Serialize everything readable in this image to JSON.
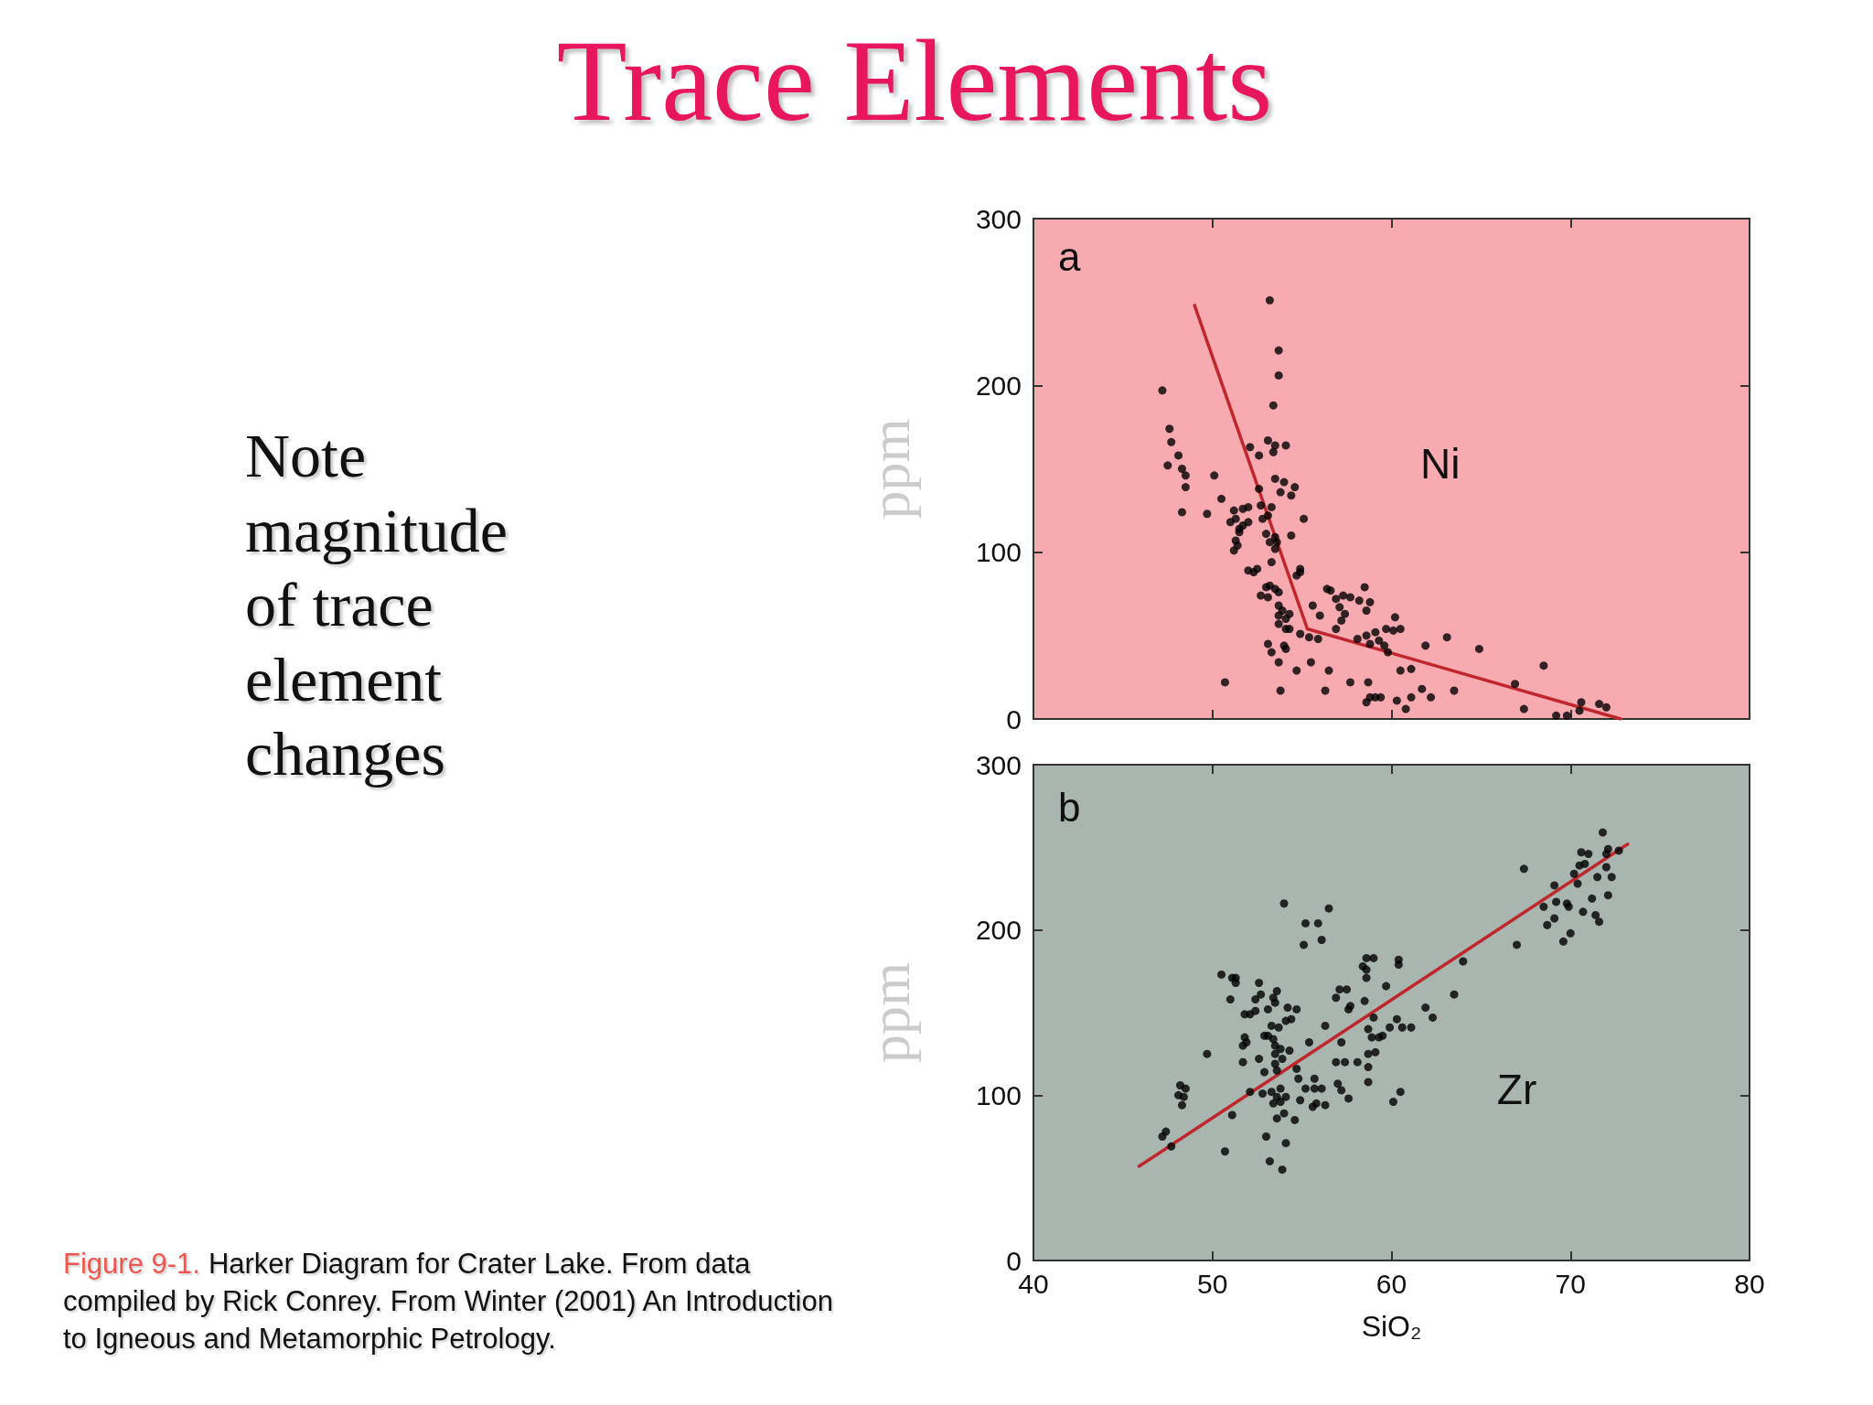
{
  "chart_data": [
    {
      "type": "scatter",
      "title": "Trace Elements",
      "ylabel": "ppm",
      "annotations": [
        "a",
        "Ni",
        "Note magnitude of trace element changes"
      ],
      "xlim": [
        40,
        80
      ],
      "xticks": [
        40,
        50,
        60,
        70,
        80
      ],
      "ylim": [
        0,
        300
      ],
      "yticks": [
        0,
        100,
        200,
        300
      ],
      "tick_labels": "y",
      "marker": "circle",
      "series": [
        {
          "color": "#000000",
          "x": [
            53.2,
            53.7,
            53.7,
            53.4,
            47.2,
            47.6,
            47.7,
            48.1,
            47.5,
            48.3,
            48.5,
            48.5,
            48.3,
            49.7,
            50.1,
            50.5,
            51.2,
            51.3,
            51.7,
            52.0,
            51.0,
            51.5,
            51.5,
            51.7,
            52.0,
            51.3,
            51.2,
            51.4,
            52.1,
            52.6,
            53.1,
            53.5,
            53.4,
            54.1,
            53.5,
            54.0,
            53.8,
            54.6,
            54.4,
            55.1,
            52.6,
            52.7,
            53.3,
            53.1,
            52.8,
            53.0,
            53.5,
            53.2,
            53.6,
            53.5,
            54.4,
            53.3,
            52.0,
            52.3,
            52.5,
            54.9,
            54.7,
            54.9,
            53.0,
            53.2,
            53.5,
            52.7,
            53.1,
            53.7,
            53.7,
            53.9,
            53.7,
            54.1,
            53.7,
            54.1,
            54.3,
            54.3,
            53.1,
            53.3,
            54.0,
            54.1,
            53.7,
            54.7,
            55.5,
            54.9,
            55.4,
            55.9,
            55.6,
            56.0,
            56.4,
            56.6,
            56.9,
            57.3,
            57.1,
            57.4,
            57.2,
            56.9,
            57.7,
            58.2,
            58.5,
            58.8,
            58.6,
            58.1,
            58.6,
            58.8,
            59.1,
            59.3,
            59.6,
            59.8,
            59.7,
            60.2,
            60.1,
            60.5,
            61.9,
            63.1,
            64.9,
            53.8,
            56.3,
            56.5,
            57.7,
            58.7,
            58.8,
            59.1,
            59.4,
            58.6,
            60.3,
            60.8,
            60.5,
            61.1,
            61.7,
            62.2,
            61.1,
            63.5,
            50.7,
            66.9,
            68.5,
            67.4,
            69.2,
            69.8,
            70.5,
            70.6,
            71.6,
            72.0
          ],
          "values": [
            251,
            221,
            206,
            188,
            197,
            174,
            166,
            158,
            152,
            150,
            146,
            139,
            124,
            123,
            146,
            132,
            125,
            120,
            126,
            127,
            118,
            114,
            112,
            116,
            118,
            107,
            101,
            104,
            163,
            158,
            167,
            164,
            160,
            164,
            144,
            142,
            136,
            139,
            134,
            120,
            138,
            128,
            127,
            122,
            120,
            111,
            109,
            106,
            106,
            102,
            110,
            94,
            89,
            88,
            90,
            90,
            86,
            88,
            79,
            80,
            78,
            74,
            73,
            76,
            68,
            65,
            62,
            60,
            57,
            54,
            63,
            54,
            45,
            40,
            44,
            42,
            34,
            29,
            34,
            51,
            49,
            48,
            68,
            62,
            78,
            77,
            72,
            74,
            67,
            63,
            59,
            54,
            73,
            71,
            79,
            70,
            65,
            48,
            50,
            45,
            52,
            47,
            44,
            40,
            54,
            61,
            53,
            54,
            44,
            49,
            42,
            17,
            17,
            29,
            22,
            22,
            13,
            13,
            13,
            10,
            11,
            6,
            29,
            30,
            18,
            13,
            13,
            17,
            22,
            21,
            32,
            6,
            2,
            2,
            5,
            10,
            9,
            7
          ]
        },
        {
          "type": "line",
          "color": "#c0272d",
          "marker": "none",
          "x": [
            49.0,
            55.3,
            72.8
          ],
          "values": [
            248,
            54,
            0
          ]
        }
      ]
    },
    {
      "type": "scatter",
      "xlabel": "SiO₂",
      "ylabel": "ppm",
      "annotations": [
        "b",
        "Zr",
        "Figure 9-1.",
        "Harker Diagram for Crater Lake. From data",
        "compiled by Rick Conrey. From Winter (2001) An Introduction",
        "to Igneous and Metamorphic Petrology."
      ],
      "xlim": [
        40,
        80
      ],
      "xticks": [
        40,
        50,
        60,
        70,
        80
      ],
      "ylim": [
        0,
        300
      ],
      "yticks": [
        0,
        100,
        200,
        300
      ],
      "marker": "circle",
      "series": [
        {
          "color": "#000000",
          "x": [
            54.0,
            56.5,
            55.2,
            55.9,
            55.1,
            56.1,
            58.6,
            59.0,
            58.4,
            58.6,
            58.6,
            60.4,
            60.4,
            64.0,
            50.5,
            51.1,
            51.3,
            51.3,
            52.6,
            51.0,
            52.4,
            52.7,
            53.4,
            53.6,
            53.5,
            51.8,
            52.1,
            52.4,
            53.1,
            54.2,
            54.7,
            54.1,
            54.4,
            53.3,
            53.7,
            52.9,
            53.1,
            53.4,
            51.8,
            51.7,
            51.9,
            52.6,
            51.7,
            52.9,
            53.5,
            53.8,
            53.5,
            53.9,
            53.5,
            53.6,
            54.3,
            54.7,
            54.8,
            55.4,
            56.3,
            57.1,
            57.5,
            56.9,
            57.6,
            57.7,
            58.5,
            59.7,
            57.2,
            56.9,
            57.4,
            58.1,
            58.7,
            59.1,
            58.7,
            58.7,
            58.7,
            59.0,
            58.9,
            59.3,
            59.5,
            59.9,
            60.3,
            60.6,
            61.1,
            61.9,
            62.3,
            63.5,
            52.1,
            52.8,
            53.3,
            53.8,
            54.1,
            53.6,
            53.8,
            53.4,
            54.0,
            54.6,
            53.6,
            55.2,
            55.7,
            55.7,
            55.8,
            56.1,
            56.3,
            55.6,
            54.9,
            57.0,
            57.2,
            57.6,
            60.1,
            60.5,
            51.1,
            53.0,
            54.1,
            50.7,
            53.2,
            53.9,
            48.2,
            48.5,
            48.1,
            48.3,
            48.4,
            49.7,
            47.4,
            47.2,
            47.7,
            71.8,
            67.4,
            70.6,
            71.0,
            72.1,
            72.7,
            72.0,
            70.5,
            70.8,
            70.2,
            72.0,
            71.5,
            72.3,
            70.4,
            69.1,
            69.2,
            69.8,
            69.9,
            68.5,
            71.2,
            72.1,
            70.7,
            71.4,
            71.6,
            69.1,
            68.7,
            70.0,
            69.6,
            67.0
          ],
          "values": [
            216,
            213,
            204,
            204,
            191,
            194,
            183,
            183,
            178,
            176,
            171,
            182,
            179,
            181,
            173,
            171,
            171,
            168,
            168,
            158,
            158,
            161,
            159,
            163,
            156,
            149,
            149,
            151,
            152,
            153,
            152,
            145,
            146,
            142,
            141,
            136,
            136,
            134,
            135,
            130,
            132,
            122,
            120,
            114,
            130,
            128,
            125,
            122,
            119,
            115,
            127,
            116,
            110,
            132,
            142,
            164,
            164,
            159,
            152,
            154,
            157,
            166,
            132,
            120,
            120,
            120,
            125,
            126,
            117,
            108,
            140,
            147,
            135,
            135,
            136,
            141,
            146,
            141,
            141,
            153,
            147,
            161,
            102,
            101,
            102,
            104,
            99,
            99,
            96,
            95,
            89,
            85,
            86,
            104,
            110,
            104,
            95,
            104,
            94,
            93,
            97,
            107,
            103,
            98,
            96,
            102,
            88,
            75,
            71,
            66,
            60,
            55,
            106,
            104,
            100,
            94,
            99,
            125,
            78,
            75,
            69,
            259,
            237,
            247,
            246,
            249,
            248,
            246,
            239,
            240,
            234,
            238,
            232,
            232,
            228,
            227,
            217,
            216,
            214,
            214,
            219,
            221,
            211,
            209,
            205,
            207,
            203,
            198,
            193,
            191
          ]
        },
        {
          "type": "line",
          "color": "#c0272d",
          "marker": "none",
          "x": [
            45.9,
            73.2
          ],
          "values": [
            57,
            252
          ]
        }
      ]
    }
  ]
}
